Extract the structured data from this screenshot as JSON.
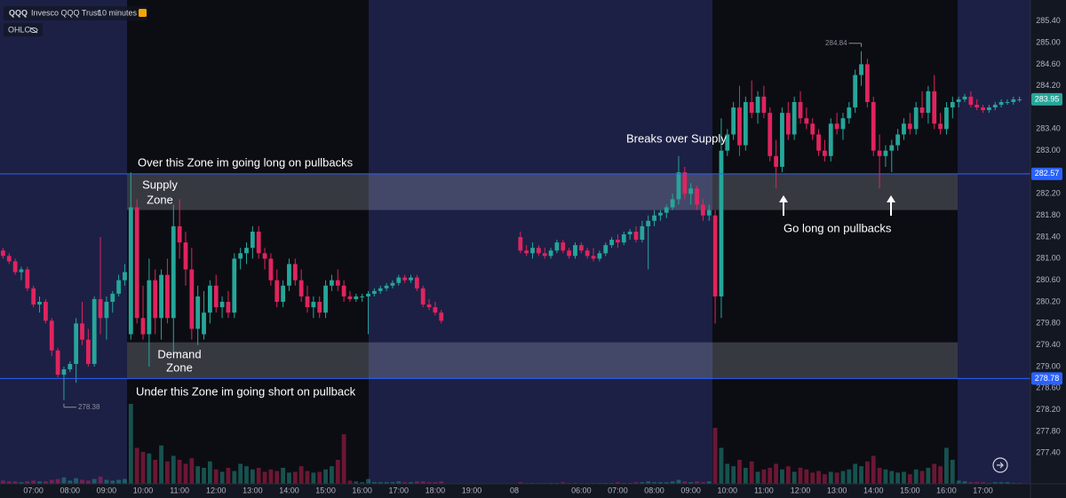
{
  "header": {
    "symbol": "QQQ",
    "name": "Invesco QQQ Trust",
    "interval": "10 minutes",
    "indicator": "OHLC"
  },
  "chart_data": {
    "type": "candlestick",
    "x": [
      0,
      1,
      2,
      3,
      4,
      5,
      6,
      7,
      8,
      9,
      10,
      11,
      12,
      13,
      14,
      15,
      16,
      17,
      18,
      19,
      20,
      21,
      22,
      23,
      24,
      25,
      26,
      27,
      28,
      29,
      30,
      31,
      32,
      33,
      34,
      35,
      36,
      37,
      38,
      39,
      40,
      41,
      42,
      43,
      44,
      45,
      46,
      47,
      48,
      49,
      50,
      51,
      52,
      53,
      54,
      55,
      56,
      57,
      58,
      59,
      60,
      61,
      62,
      63,
      64,
      65,
      66,
      67,
      68,
      69,
      70,
      71,
      72,
      85,
      86,
      87,
      88,
      89,
      90,
      91,
      92,
      93,
      94,
      95,
      96,
      97,
      98,
      99,
      100,
      101,
      102,
      103,
      104,
      105,
      106,
      107,
      108,
      109,
      110,
      111,
      112,
      113,
      114,
      115,
      116,
      117,
      118,
      119,
      120,
      121,
      122,
      123,
      124,
      125,
      126,
      127,
      128,
      129,
      130,
      131,
      132,
      133,
      134,
      135,
      136,
      137,
      138,
      139,
      140,
      141,
      142,
      143,
      144,
      145,
      146,
      147,
      148,
      149,
      150,
      151,
      152,
      153,
      154,
      155,
      156,
      157,
      158,
      159,
      160,
      161,
      162,
      163,
      164,
      165,
      166,
      167
    ],
    "open": [
      281.15,
      281.05,
      280.95,
      280.75,
      280.8,
      280.45,
      280.15,
      280.2,
      279.85,
      279.3,
      278.85,
      278.95,
      279.05,
      279.8,
      279.5,
      279.05,
      280.25,
      279.9,
      280.2,
      280.35,
      280.6,
      279.6,
      281.95,
      279.9,
      279.6,
      280.6,
      279.9,
      280.7,
      279.9,
      281.6,
      281.3,
      280.8,
      279.7,
      279.6,
      280.0,
      280.5,
      280.1,
      280.2,
      280.0,
      281.0,
      281.1,
      281.2,
      281.5,
      281.1,
      281.0,
      280.6,
      280.2,
      280.5,
      280.9,
      280.6,
      280.3,
      280.1,
      280.2,
      280.0,
      280.5,
      280.6,
      280.5,
      280.3,
      280.25,
      280.3,
      280.3,
      280.35,
      280.4,
      280.45,
      280.5,
      280.55,
      280.65,
      280.6,
      280.65,
      280.45,
      280.15,
      280.1,
      280.0,
      281.4,
      281.15,
      281.1,
      281.2,
      281.1,
      281.05,
      281.15,
      281.3,
      281.15,
      281.05,
      281.25,
      281.15,
      281.05,
      281.0,
      281.1,
      281.25,
      281.35,
      281.3,
      281.45,
      281.5,
      281.35,
      281.6,
      281.7,
      281.8,
      281.85,
      281.95,
      282.1,
      282.6,
      282.2,
      282.3,
      282.0,
      281.8,
      281.8,
      280.3,
      283.0,
      283.3,
      283.8,
      283.1,
      283.9,
      283.7,
      284.0,
      283.7,
      282.9,
      282.7,
      283.7,
      283.3,
      283.9,
      283.6,
      283.5,
      283.3,
      283.0,
      282.9,
      283.5,
      283.4,
      283.6,
      283.8,
      284.4,
      284.6,
      283.9,
      283.0,
      282.9,
      283.0,
      283.1,
      283.3,
      283.5,
      283.4,
      283.8,
      283.7,
      284.1,
      283.5,
      283.4,
      283.8,
      283.9,
      283.95,
      284.0,
      283.85,
      283.8,
      283.75,
      283.8,
      283.85,
      283.9,
      283.9,
      283.95
    ],
    "high": [
      281.2,
      281.1,
      281.0,
      280.85,
      280.85,
      280.5,
      280.3,
      280.25,
      279.9,
      279.35,
      279.0,
      279.1,
      279.9,
      280.2,
      279.7,
      280.3,
      281.4,
      280.3,
      280.4,
      280.7,
      280.9,
      282.6,
      282.1,
      280.5,
      281.0,
      280.8,
      280.8,
      281.0,
      282.0,
      282.1,
      281.5,
      281.2,
      280.5,
      280.4,
      280.6,
      280.7,
      280.3,
      280.4,
      281.1,
      281.2,
      281.3,
      281.6,
      281.6,
      281.2,
      281.1,
      280.8,
      280.6,
      281.0,
      281.0,
      280.8,
      280.5,
      280.3,
      280.3,
      280.6,
      280.7,
      280.8,
      280.6,
      280.4,
      280.35,
      280.35,
      280.4,
      280.45,
      280.5,
      280.55,
      280.6,
      280.7,
      280.7,
      280.7,
      280.7,
      280.5,
      280.25,
      280.2,
      280.05,
      281.5,
      281.25,
      281.3,
      281.25,
      281.2,
      281.2,
      281.35,
      281.35,
      281.2,
      281.3,
      281.3,
      281.2,
      281.2,
      281.15,
      281.3,
      281.4,
      281.45,
      281.5,
      281.55,
      281.6,
      281.7,
      281.8,
      281.9,
      281.9,
      282.0,
      282.2,
      282.9,
      282.7,
      282.4,
      282.35,
      282.1,
      282.0,
      281.9,
      283.6,
      283.4,
      283.9,
      284.2,
      284.0,
      284.3,
      284.1,
      284.2,
      283.8,
      283.2,
      283.8,
      283.9,
      284.0,
      284.1,
      283.8,
      283.6,
      283.4,
      283.2,
      283.6,
      283.7,
      283.7,
      283.9,
      284.5,
      284.84,
      284.7,
      284.0,
      283.3,
      283.1,
      283.2,
      283.4,
      283.6,
      283.7,
      283.9,
      284.1,
      284.2,
      284.4,
      283.7,
      283.9,
      284.0,
      284.0,
      284.05,
      284.1,
      283.95,
      283.85,
      283.85,
      283.9,
      283.95,
      283.95,
      284.0,
      284.0
    ],
    "low": [
      281.0,
      280.9,
      280.7,
      280.6,
      280.4,
      280.1,
      280.0,
      279.8,
      279.2,
      278.8,
      278.38,
      278.9,
      278.7,
      279.4,
      279.0,
      279.0,
      279.6,
      279.5,
      280.0,
      280.3,
      280.5,
      279.5,
      279.8,
      279.5,
      279.0,
      279.6,
      279.5,
      279.8,
      279.2,
      281.0,
      280.5,
      279.5,
      279.4,
      279.5,
      279.8,
      280.0,
      279.9,
      279.9,
      279.9,
      280.8,
      280.9,
      281.0,
      281.0,
      280.8,
      280.5,
      280.1,
      280.1,
      280.4,
      280.5,
      280.2,
      280.0,
      279.9,
      279.9,
      279.9,
      280.4,
      280.4,
      280.2,
      280.2,
      280.2,
      280.2,
      279.6,
      280.3,
      280.35,
      280.4,
      280.45,
      280.5,
      280.55,
      280.55,
      280.4,
      280.1,
      280.05,
      279.95,
      279.8,
      281.1,
      281.05,
      281.0,
      281.05,
      281.0,
      281.0,
      281.1,
      281.1,
      281.0,
      281.0,
      281.1,
      281.0,
      280.95,
      280.95,
      281.05,
      281.2,
      281.2,
      281.25,
      281.35,
      281.3,
      281.3,
      280.8,
      281.6,
      281.7,
      281.75,
      281.9,
      282.0,
      282.1,
      282.0,
      281.9,
      281.7,
      281.7,
      279.8,
      279.9,
      282.9,
      283.2,
      282.9,
      283.0,
      283.6,
      283.5,
      283.6,
      282.8,
      282.3,
      282.6,
      283.2,
      283.2,
      283.5,
      283.4,
      283.2,
      282.9,
      282.8,
      282.8,
      283.3,
      283.2,
      283.5,
      283.7,
      284.2,
      283.8,
      282.9,
      282.3,
      282.7,
      282.6,
      283.0,
      283.2,
      283.3,
      283.3,
      283.6,
      283.5,
      283.4,
      283.3,
      283.3,
      283.6,
      283.8,
      283.9,
      283.8,
      283.75,
      283.7,
      283.7,
      283.75,
      283.8,
      283.85,
      283.85,
      283.9
    ],
    "close": [
      281.05,
      280.95,
      280.75,
      280.8,
      280.45,
      280.15,
      280.2,
      279.85,
      279.3,
      278.85,
      278.95,
      279.05,
      279.8,
      279.5,
      279.05,
      280.25,
      279.9,
      280.2,
      280.35,
      280.6,
      280.75,
      281.95,
      279.9,
      279.6,
      280.6,
      279.9,
      280.7,
      279.9,
      281.6,
      281.3,
      280.8,
      279.7,
      280.3,
      280.0,
      280.5,
      280.1,
      280.2,
      280.0,
      281.0,
      281.1,
      281.2,
      281.5,
      281.1,
      281.0,
      280.6,
      280.2,
      280.5,
      280.9,
      280.6,
      280.3,
      280.1,
      280.2,
      280.0,
      280.5,
      280.6,
      280.5,
      280.3,
      280.25,
      280.3,
      280.3,
      280.35,
      280.4,
      280.45,
      280.5,
      280.55,
      280.65,
      280.6,
      280.65,
      280.45,
      280.15,
      280.1,
      280.0,
      279.85,
      281.15,
      281.1,
      281.2,
      281.1,
      281.05,
      281.15,
      281.3,
      281.15,
      281.05,
      281.25,
      281.15,
      281.05,
      281.0,
      281.1,
      281.25,
      281.35,
      281.3,
      281.45,
      281.5,
      281.35,
      281.6,
      281.7,
      281.8,
      281.85,
      281.95,
      282.1,
      282.6,
      282.2,
      282.3,
      282.0,
      281.8,
      281.9,
      280.3,
      283.0,
      283.3,
      283.8,
      283.1,
      283.9,
      283.7,
      284.0,
      283.7,
      282.9,
      282.7,
      283.7,
      283.3,
      283.9,
      283.6,
      283.5,
      283.3,
      283.0,
      282.9,
      283.5,
      283.4,
      283.6,
      283.8,
      284.4,
      284.6,
      283.9,
      283.0,
      282.9,
      283.0,
      283.1,
      283.3,
      283.5,
      283.4,
      283.8,
      283.7,
      284.1,
      283.5,
      283.4,
      283.8,
      283.9,
      283.95,
      284.0,
      283.85,
      283.8,
      283.75,
      283.8,
      283.85,
      283.9,
      283.9,
      283.95,
      283.95
    ],
    "volume": [
      4,
      3,
      3,
      2,
      3,
      4,
      3,
      3,
      5,
      6,
      8,
      4,
      7,
      5,
      4,
      6,
      9,
      5,
      4,
      5,
      6,
      100,
      45,
      40,
      38,
      30,
      48,
      28,
      35,
      30,
      25,
      32,
      22,
      20,
      28,
      18,
      15,
      20,
      16,
      25,
      22,
      18,
      20,
      15,
      18,
      16,
      20,
      14,
      15,
      22,
      16,
      14,
      15,
      18,
      22,
      30,
      62,
      4,
      3,
      2,
      6,
      2,
      2,
      2,
      2,
      3,
      2,
      2,
      3,
      3,
      2,
      2,
      3,
      2,
      1,
      1,
      1,
      1,
      1,
      1,
      2,
      1,
      1,
      1,
      1,
      1,
      1,
      1,
      1,
      2,
      1,
      1,
      2,
      2,
      3,
      2,
      2,
      2,
      3,
      5,
      3,
      2,
      3,
      2,
      3,
      70,
      45,
      25,
      22,
      30,
      20,
      28,
      15,
      18,
      20,
      25,
      18,
      22,
      15,
      20,
      18,
      14,
      16,
      12,
      15,
      14,
      16,
      18,
      25,
      22,
      28,
      35,
      20,
      18,
      16,
      14,
      15,
      12,
      18,
      16,
      20,
      25,
      22,
      45,
      30,
      4,
      3,
      2,
      2,
      2,
      1,
      2,
      2,
      2,
      1,
      1
    ],
    "up_color": "#26a69a",
    "down_color": "#e0245e",
    "line_color": "#2962ff",
    "xlim": [
      -0.5,
      168.8
    ],
    "xticks": [
      {
        "value": 5,
        "label": "07:00"
      },
      {
        "value": 11,
        "label": "08:00"
      },
      {
        "value": 17,
        "label": "09:00"
      },
      {
        "value": 23,
        "label": "10:00"
      },
      {
        "value": 29,
        "label": "11:00"
      },
      {
        "value": 35,
        "label": "12:00"
      },
      {
        "value": 41,
        "label": "13:00"
      },
      {
        "value": 47,
        "label": "14:00"
      },
      {
        "value": 53,
        "label": "15:00"
      },
      {
        "value": 59,
        "label": "16:00"
      },
      {
        "value": 65,
        "label": "17:00"
      },
      {
        "value": 71,
        "label": "18:00"
      },
      {
        "value": 77,
        "label": "19:00"
      },
      {
        "value": 84,
        "label": "08"
      },
      {
        "value": 95,
        "label": "06:00"
      },
      {
        "value": 101,
        "label": "07:00"
      },
      {
        "value": 107,
        "label": "08:00"
      },
      {
        "value": 113,
        "label": "09:00"
      },
      {
        "value": 119,
        "label": "10:00"
      },
      {
        "value": 125,
        "label": "11:00"
      },
      {
        "value": 131,
        "label": "12:00"
      },
      {
        "value": 137,
        "label": "13:00"
      },
      {
        "value": 143,
        "label": "14:00"
      },
      {
        "value": 149,
        "label": "15:00"
      },
      {
        "value": 155,
        "label": "16:00"
      },
      {
        "value": 161,
        "label": "17:00"
      }
    ],
    "ylim": [
      276.83,
      285.79
    ],
    "yticks": [
      {
        "value": 285.4,
        "label": "285.40"
      },
      {
        "value": 285.0,
        "label": "285.00"
      },
      {
        "value": 284.6,
        "label": "284.60"
      },
      {
        "value": 284.2,
        "label": "284.20"
      },
      {
        "value": 283.4,
        "label": "283.40"
      },
      {
        "value": 283.0,
        "label": "283.00"
      },
      {
        "value": 282.2,
        "label": "282.20"
      },
      {
        "value": 281.8,
        "label": "281.80"
      },
      {
        "value": 281.4,
        "label": "281.40"
      },
      {
        "value": 281.0,
        "label": "281.00"
      },
      {
        "value": 280.6,
        "label": "280.60"
      },
      {
        "value": 280.2,
        "label": "280.20"
      },
      {
        "value": 279.8,
        "label": "279.80"
      },
      {
        "value": 279.4,
        "label": "279.40"
      },
      {
        "value": 279.0,
        "label": "279.00"
      },
      {
        "value": 278.6,
        "label": "278.60"
      },
      {
        "value": 278.2,
        "label": "278.20"
      },
      {
        "value": 277.8,
        "label": "277.80"
      },
      {
        "value": 277.4,
        "label": "277.40"
      }
    ],
    "last_price": 283.95,
    "price_lines": [
      282.57,
      278.78
    ],
    "zones": [
      {
        "label": [
          "Supply",
          "Zone"
        ],
        "low": 281.9,
        "high": 282.57
      },
      {
        "label": [
          "Demand",
          "Zone"
        ],
        "low": 278.78,
        "high": 279.45
      }
    ],
    "high_marker": {
      "x": 141,
      "value": 284.84
    },
    "low_marker": {
      "x": 10,
      "value": 278.38
    },
    "annotations": [
      "Over this Zone im going long on pullbacks",
      "Under this Zone im going short on pullback",
      "Breaks over Supply",
      "Go long on pullbacks"
    ]
  }
}
